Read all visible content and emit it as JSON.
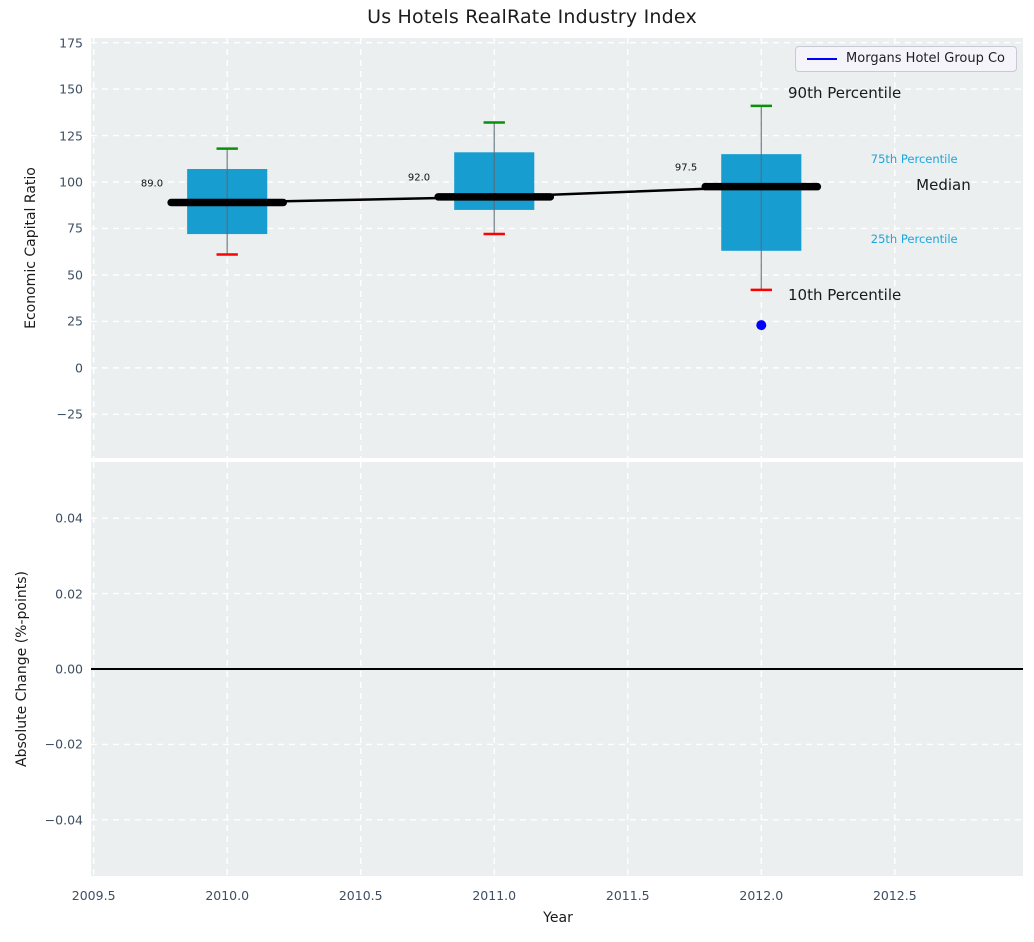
{
  "title": "Us Hotels RealRate Industry Index",
  "legend": {
    "label": "Morgans Hotel Group Co",
    "line_color": "#0000ff"
  },
  "colors": {
    "box_fill": "#189dd1",
    "whisker": "#5c6a75",
    "cap_high": "#0a8f0a",
    "cap_low": "#ff0000",
    "median": "#000000",
    "company": "#0000ff",
    "grid": "#ffffff",
    "plot_bg": "#ebefef",
    "tick_text": "#3d4f63",
    "annotation_dark": "#1a1a1a",
    "annotation_cyan": "#1fa4d9"
  },
  "chart_data": [
    {
      "type": "box",
      "ylabel": "Economic Capital Ratio",
      "xlim": [
        2009.49,
        2012.98
      ],
      "ylim": [
        -48.5,
        177.5
      ],
      "grid": true,
      "legend_position": "upper right",
      "yticks": [
        175,
        150,
        125,
        100,
        75,
        50,
        25,
        0,
        -25
      ],
      "ytick_labels": [
        "175",
        "150",
        "125",
        "100",
        "75",
        "50",
        "25",
        "0",
        "−25"
      ],
      "xticks": [
        2009.5,
        2010.0,
        2010.5,
        2011.0,
        2011.5,
        2012.0,
        2012.5
      ],
      "boxes": [
        {
          "year": 2010,
          "median": 89.0,
          "q1": 72,
          "q3": 107,
          "p10": 61,
          "p90": 118,
          "label": "89.0"
        },
        {
          "year": 2011,
          "median": 92.0,
          "q1": 85,
          "q3": 116,
          "p10": 72,
          "p90": 132,
          "label": "92.0"
        },
        {
          "year": 2012,
          "median": 97.5,
          "q1": 63,
          "q3": 115,
          "p10": 42,
          "p90": 141,
          "label": "97.5"
        }
      ],
      "median_line": {
        "x": [
          2010,
          2011,
          2012
        ],
        "y": [
          89.0,
          92.0,
          97.5
        ]
      },
      "company_point": {
        "name": "Morgans Hotel Group Co",
        "x": 2012,
        "y": 23
      },
      "annotations": [
        {
          "text": "90th Percentile",
          "x": 2012.1,
          "y": 148,
          "color": "#1a1a1a",
          "size": 15
        },
        {
          "text": "75th Percentile",
          "x": 2012.41,
          "y": 112.5,
          "color": "#1fa4d9",
          "size": 11.5
        },
        {
          "text": "Median",
          "x": 2012.58,
          "y": 98.5,
          "color": "#1a1a1a",
          "size": 15
        },
        {
          "text": "25th Percentile",
          "x": 2012.41,
          "y": 69.5,
          "color": "#1fa4d9",
          "size": 11.5
        },
        {
          "text": "10th Percentile",
          "x": 2012.1,
          "y": 39,
          "color": "#1a1a1a",
          "size": 15
        }
      ]
    },
    {
      "type": "line",
      "ylabel": "Absolute Change (%-points)",
      "xlabel": "Year",
      "xlim": [
        2009.49,
        2012.98
      ],
      "ylim": [
        -0.0549,
        0.0549
      ],
      "grid": true,
      "yticks": [
        0.04,
        0.02,
        0.0,
        -0.02,
        -0.04
      ],
      "ytick_labels": [
        "0.04",
        "0.02",
        "0.00",
        "−0.02",
        "−0.04"
      ],
      "xticks": [
        2009.5,
        2010.0,
        2010.5,
        2011.0,
        2011.5,
        2012.0,
        2012.5
      ],
      "xtick_labels": [
        "2009.5",
        "2010.0",
        "2010.5",
        "2011.0",
        "2011.5",
        "2012.0",
        "2012.5"
      ],
      "zero_line": 0.0,
      "series": []
    }
  ]
}
